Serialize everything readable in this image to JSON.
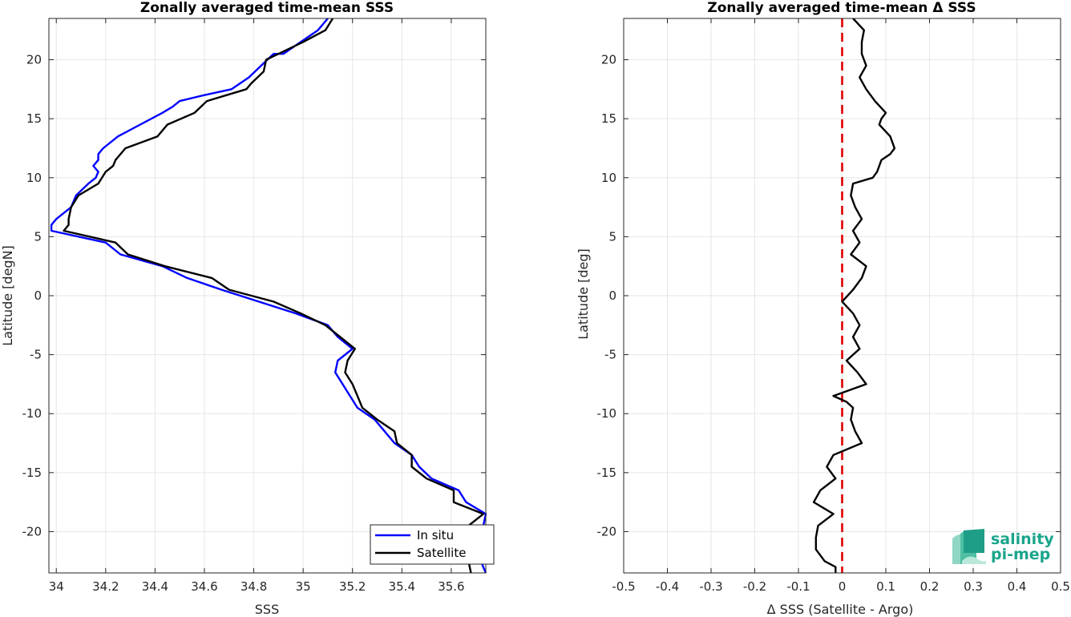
{
  "chart_data": [
    {
      "type": "line",
      "title": "Zonally averaged time-mean SSS",
      "xlabel": "SSS",
      "ylabel": "Latitude [degN]",
      "xlim": [
        33.97,
        35.74
      ],
      "ylim": [
        -23.5,
        23.5
      ],
      "xticks": [
        34,
        34.2,
        34.4,
        34.6,
        34.8,
        35,
        35.2,
        35.4,
        35.6
      ],
      "xtick_labels": [
        "34",
        "34.2",
        "34.4",
        "34.6",
        "34.8",
        "35",
        "35.2",
        "35.4",
        "35.6"
      ],
      "yticks": [
        -20,
        -15,
        -10,
        -5,
        0,
        5,
        10,
        15,
        20
      ],
      "ytick_labels": [
        "-20",
        "-15",
        "-10",
        "-5",
        "0",
        "5",
        "10",
        "15",
        "20"
      ],
      "grid": true,
      "legend_position": "bottom-right",
      "series": [
        {
          "name": "In situ",
          "color": "#0000ff",
          "points": [
            [
              35.1,
              23.5
            ],
            [
              35.06,
              22.5
            ],
            [
              34.99,
              21.5
            ],
            [
              34.92,
              20.5
            ],
            [
              34.88,
              20.5
            ],
            [
              34.83,
              19.5
            ],
            [
              34.78,
              18.5
            ],
            [
              34.71,
              17.5
            ],
            [
              34.6,
              17.0
            ],
            [
              34.5,
              16.5
            ],
            [
              34.47,
              16.0
            ],
            [
              34.43,
              15.5
            ],
            [
              34.34,
              14.5
            ],
            [
              34.25,
              13.5
            ],
            [
              34.19,
              12.5
            ],
            [
              34.17,
              12.0
            ],
            [
              34.17,
              11.5
            ],
            [
              34.15,
              11.0
            ],
            [
              34.17,
              10.5
            ],
            [
              34.16,
              10.0
            ],
            [
              34.13,
              9.5
            ],
            [
              34.08,
              8.5
            ],
            [
              34.06,
              7.5
            ],
            [
              34.0,
              6.5
            ],
            [
              33.98,
              6.0
            ],
            [
              33.98,
              5.5
            ],
            [
              34.2,
              4.5
            ],
            [
              34.26,
              3.5
            ],
            [
              34.43,
              2.5
            ],
            [
              34.53,
              1.5
            ],
            [
              34.67,
              0.5
            ],
            [
              34.82,
              -0.5
            ],
            [
              34.97,
              -1.5
            ],
            [
              35.1,
              -2.5
            ],
            [
              35.14,
              -3.5
            ],
            [
              35.2,
              -4.5
            ],
            [
              35.14,
              -5.5
            ],
            [
              35.13,
              -6.5
            ],
            [
              35.16,
              -7.5
            ],
            [
              35.19,
              -8.5
            ],
            [
              35.22,
              -9.5
            ],
            [
              35.29,
              -10.5
            ],
            [
              35.33,
              -11.5
            ],
            [
              35.37,
              -12.5
            ],
            [
              35.44,
              -13.5
            ],
            [
              35.47,
              -14.5
            ],
            [
              35.52,
              -15.5
            ],
            [
              35.63,
              -16.5
            ],
            [
              35.66,
              -17.5
            ],
            [
              35.74,
              -18.5
            ],
            [
              35.73,
              -19.5
            ],
            [
              35.74,
              -20.5
            ],
            [
              35.74,
              -21.5
            ],
            [
              35.72,
              -22.5
            ],
            [
              35.74,
              -23.5
            ]
          ]
        },
        {
          "name": "Satellite",
          "color": "#000000",
          "points": [
            [
              35.12,
              23.5
            ],
            [
              35.09,
              22.5
            ],
            [
              35.0,
              21.5
            ],
            [
              34.9,
              20.5
            ],
            [
              34.85,
              20.0
            ],
            [
              34.84,
              19.0
            ],
            [
              34.79,
              18.0
            ],
            [
              34.77,
              17.5
            ],
            [
              34.69,
              17.0
            ],
            [
              34.61,
              16.5
            ],
            [
              34.56,
              15.5
            ],
            [
              34.45,
              14.5
            ],
            [
              34.41,
              13.5
            ],
            [
              34.28,
              12.5
            ],
            [
              34.24,
              11.5
            ],
            [
              34.23,
              11.0
            ],
            [
              34.2,
              10.5
            ],
            [
              34.17,
              9.5
            ],
            [
              34.09,
              8.5
            ],
            [
              34.06,
              7.5
            ],
            [
              34.05,
              6.5
            ],
            [
              34.05,
              6.0
            ],
            [
              34.03,
              5.5
            ],
            [
              34.24,
              4.5
            ],
            [
              34.29,
              3.5
            ],
            [
              34.44,
              2.5
            ],
            [
              34.63,
              1.5
            ],
            [
              34.7,
              0.5
            ],
            [
              34.88,
              -0.5
            ],
            [
              34.99,
              -1.5
            ],
            [
              35.09,
              -2.5
            ],
            [
              35.15,
              -3.5
            ],
            [
              35.21,
              -4.5
            ],
            [
              35.18,
              -5.5
            ],
            [
              35.17,
              -6.5
            ],
            [
              35.2,
              -7.5
            ],
            [
              35.22,
              -8.5
            ],
            [
              35.24,
              -9.5
            ],
            [
              35.3,
              -10.5
            ],
            [
              35.37,
              -11.5
            ],
            [
              35.38,
              -12.5
            ],
            [
              35.44,
              -13.5
            ],
            [
              35.44,
              -14.5
            ],
            [
              35.5,
              -15.5
            ],
            [
              35.61,
              -16.5
            ],
            [
              35.61,
              -17.5
            ],
            [
              35.73,
              -18.5
            ],
            [
              35.67,
              -19.5
            ],
            [
              35.7,
              -20.5
            ],
            [
              35.7,
              -21.5
            ],
            [
              35.67,
              -22.5
            ],
            [
              35.68,
              -23.5
            ]
          ]
        }
      ]
    },
    {
      "type": "line",
      "title": "Zonally averaged time-mean Δ SSS",
      "xlabel": "Δ SSS (Satellite - Argo)",
      "ylabel": "Latitude [deg]",
      "xlim": [
        -0.5,
        0.5
      ],
      "ylim": [
        -23.5,
        23.5
      ],
      "xticks": [
        -0.5,
        -0.4,
        -0.3,
        -0.2,
        -0.1,
        0,
        0.1,
        0.2,
        0.3,
        0.4,
        0.5
      ],
      "xtick_labels": [
        "-0.5",
        "-0.4",
        "-0.3",
        "-0.2",
        "-0.1",
        "0",
        "0.1",
        "0.2",
        "0.3",
        "0.4",
        "0.5"
      ],
      "yticks": [
        -20,
        -15,
        -10,
        -5,
        0,
        5,
        10,
        15,
        20
      ],
      "ytick_labels": [
        "-20",
        "-15",
        "-10",
        "-5",
        "0",
        "5",
        "10",
        "15",
        "20"
      ],
      "grid": true,
      "reference_line": {
        "x": 0,
        "color": "#e00000",
        "style": "dashed"
      },
      "series": [
        {
          "color": "#000000",
          "points": [
            [
              0.025,
              23.5
            ],
            [
              0.05,
              22.5
            ],
            [
              0.045,
              21.5
            ],
            [
              0.045,
              20.5
            ],
            [
              0.055,
              19.5
            ],
            [
              0.04,
              18.5
            ],
            [
              0.055,
              17.5
            ],
            [
              0.075,
              16.5
            ],
            [
              0.1,
              15.5
            ],
            [
              0.09,
              15.0
            ],
            [
              0.085,
              14.5
            ],
            [
              0.11,
              13.5
            ],
            [
              0.12,
              12.5
            ],
            [
              0.11,
              12.0
            ],
            [
              0.09,
              11.5
            ],
            [
              0.08,
              10.5
            ],
            [
              0.07,
              10.0
            ],
            [
              0.025,
              9.5
            ],
            [
              0.02,
              8.5
            ],
            [
              0.03,
              7.5
            ],
            [
              0.045,
              6.5
            ],
            [
              0.025,
              5.5
            ],
            [
              0.04,
              4.5
            ],
            [
              0.02,
              3.5
            ],
            [
              0.055,
              2.5
            ],
            [
              0.045,
              1.5
            ],
            [
              0.025,
              0.5
            ],
            [
              0.0,
              -0.5
            ],
            [
              0.025,
              -1.5
            ],
            [
              0.04,
              -2.5
            ],
            [
              0.025,
              -3.5
            ],
            [
              0.04,
              -4.5
            ],
            [
              0.01,
              -5.5
            ],
            [
              0.035,
              -6.5
            ],
            [
              0.055,
              -7.5
            ],
            [
              -0.02,
              -8.5
            ],
            [
              0.01,
              -9.0
            ],
            [
              0.025,
              -9.5
            ],
            [
              0.02,
              -10.5
            ],
            [
              0.03,
              -11.5
            ],
            [
              0.045,
              -12.5
            ],
            [
              -0.02,
              -13.5
            ],
            [
              -0.035,
              -14.5
            ],
            [
              -0.015,
              -15.5
            ],
            [
              -0.05,
              -16.5
            ],
            [
              -0.065,
              -17.5
            ],
            [
              -0.02,
              -18.5
            ],
            [
              -0.055,
              -19.5
            ],
            [
              -0.06,
              -20.5
            ],
            [
              -0.06,
              -21.5
            ],
            [
              -0.04,
              -22.5
            ],
            [
              -0.015,
              -23.0
            ],
            [
              -0.015,
              -23.5
            ]
          ]
        }
      ]
    }
  ],
  "logo": {
    "line1": "salinity",
    "line2": "pi-mep",
    "color": "#1aa58b"
  }
}
